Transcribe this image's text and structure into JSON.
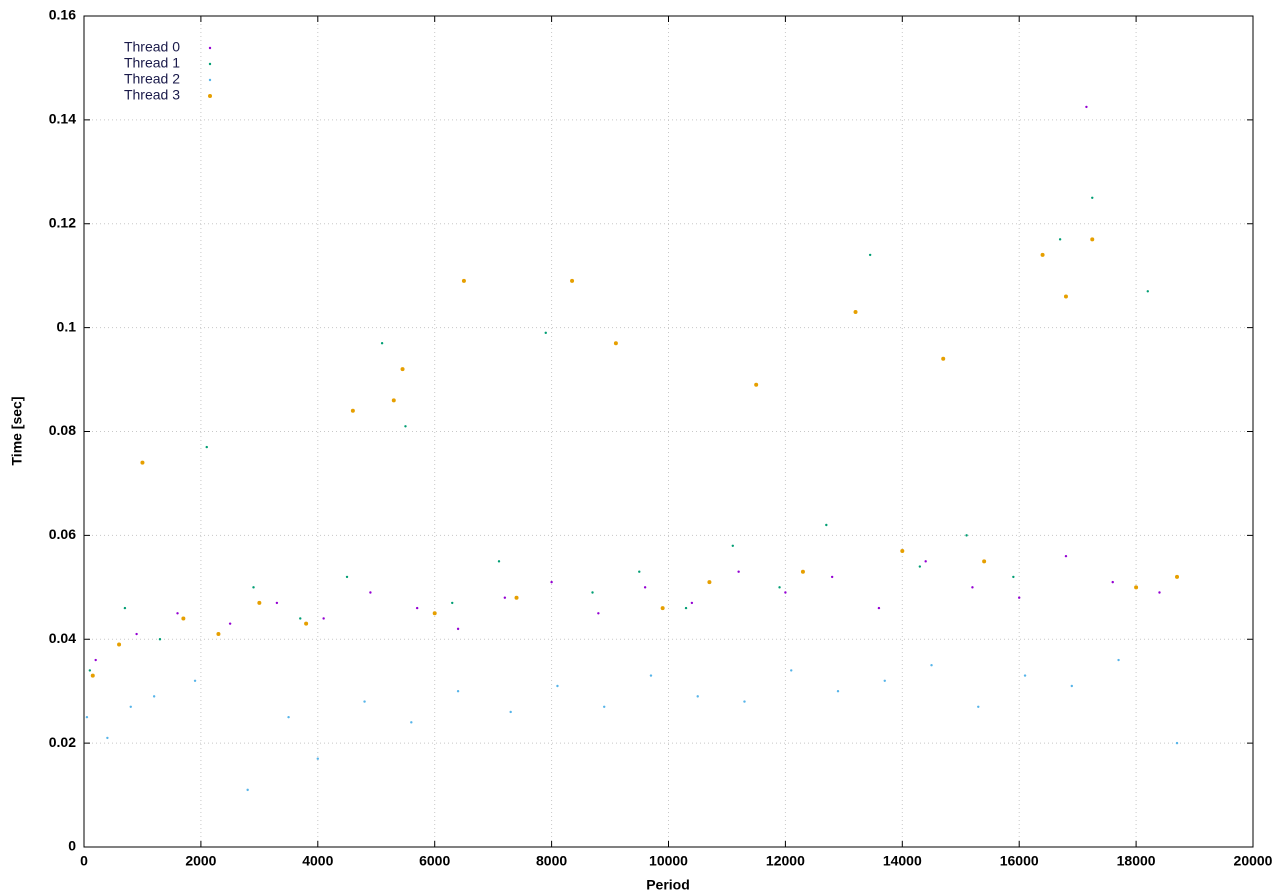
{
  "chart_data": {
    "type": "scatter",
    "xlabel": "Period",
    "ylabel": "Time [sec]",
    "xlim": [
      0,
      20000
    ],
    "xticks": [
      0,
      2000,
      4000,
      6000,
      8000,
      10000,
      12000,
      14000,
      16000,
      18000,
      20000
    ],
    "ylim": [
      0,
      0.16
    ],
    "yticks": [
      0,
      0.02,
      0.04,
      0.06,
      0.08,
      0.1,
      0.12,
      0.14,
      0.16
    ],
    "grid": true,
    "legend": "top-left",
    "series": [
      {
        "name": "Thread 0",
        "color": "#9400d3",
        "x": [
          200,
          900,
          1600,
          2500,
          3300,
          4100,
          4900,
          5700,
          6400,
          7200,
          8000,
          8800,
          9600,
          10400,
          11200,
          12000,
          12800,
          13600,
          14400,
          15200,
          16000,
          16800,
          17150,
          17600,
          18400
        ],
        "values": [
          0.036,
          0.041,
          0.045,
          0.043,
          0.047,
          0.044,
          0.049,
          0.046,
          0.042,
          0.048,
          0.051,
          0.045,
          0.05,
          0.047,
          0.053,
          0.049,
          0.052,
          0.046,
          0.055,
          0.05,
          0.048,
          0.056,
          0.1425,
          0.051,
          0.049
        ]
      },
      {
        "name": "Thread 1",
        "color": "#009e73",
        "x": [
          100,
          700,
          1300,
          2100,
          2900,
          3700,
          4500,
          5100,
          5500,
          6300,
          7100,
          7900,
          8700,
          9500,
          10300,
          11100,
          11900,
          12700,
          13450,
          14300,
          15100,
          15900,
          16700,
          17250,
          18200
        ],
        "values": [
          0.034,
          0.046,
          0.04,
          0.077,
          0.05,
          0.044,
          0.052,
          0.097,
          0.081,
          0.047,
          0.055,
          0.099,
          0.049,
          0.053,
          0.046,
          0.058,
          0.05,
          0.062,
          0.114,
          0.054,
          0.06,
          0.052,
          0.117,
          0.125,
          0.107
        ]
      },
      {
        "name": "Thread 2",
        "color": "#56b4e9",
        "x": [
          50,
          400,
          800,
          1200,
          1900,
          2800,
          3500,
          4000,
          4800,
          5600,
          6400,
          7300,
          8100,
          8900,
          9700,
          10500,
          11300,
          12100,
          12900,
          13700,
          14500,
          15300,
          16100,
          16900,
          17700,
          18700
        ],
        "values": [
          0.025,
          0.021,
          0.027,
          0.029,
          0.032,
          0.011,
          0.025,
          0.017,
          0.028,
          0.024,
          0.03,
          0.026,
          0.031,
          0.027,
          0.033,
          0.029,
          0.028,
          0.034,
          0.03,
          0.032,
          0.035,
          0.027,
          0.033,
          0.031,
          0.036,
          0.02
        ]
      },
      {
        "name": "Thread 3",
        "color": "#e69f00",
        "x": [
          150,
          600,
          1000,
          1700,
          2300,
          3000,
          3800,
          4600,
          5300,
          5450,
          6000,
          6500,
          7400,
          8350,
          9100,
          9900,
          10700,
          11500,
          12300,
          13200,
          14000,
          14700,
          15400,
          16400,
          16800,
          17250,
          18000,
          18700
        ],
        "values": [
          0.033,
          0.039,
          0.074,
          0.044,
          0.041,
          0.047,
          0.043,
          0.084,
          0.086,
          0.092,
          0.045,
          0.109,
          0.048,
          0.109,
          0.097,
          0.046,
          0.051,
          0.089,
          0.053,
          0.103,
          0.057,
          0.094,
          0.055,
          0.114,
          0.106,
          0.117,
          0.05,
          0.052
        ]
      }
    ]
  }
}
